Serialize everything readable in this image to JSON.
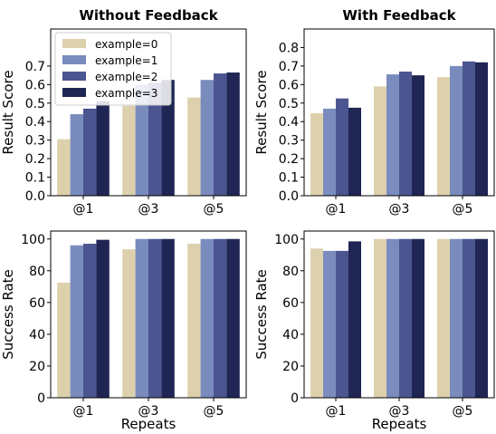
{
  "chart_data": [
    {
      "type": "bar",
      "title": "Without Feedback",
      "xlabel": "",
      "ylabel": "Result Score",
      "categories": [
        "@1",
        "@3",
        "@5"
      ],
      "ylim": [
        0,
        0.9
      ],
      "yticks": [
        "0.0",
        "0.1",
        "0.2",
        "0.3",
        "0.4",
        "0.5",
        "0.6",
        "0.7"
      ],
      "legend": "top-left",
      "series": [
        {
          "name": "example=0",
          "color": "#ddd1ad",
          "values": [
            0.305,
            0.485,
            0.53
          ]
        },
        {
          "name": "example=1",
          "color": "#7a8bbd",
          "values": [
            0.44,
            0.6,
            0.625
          ]
        },
        {
          "name": "example=2",
          "color": "#4b5590",
          "values": [
            0.47,
            0.61,
            0.66
          ]
        },
        {
          "name": "example=3",
          "color": "#1f2654",
          "values": [
            0.51,
            0.625,
            0.665
          ]
        }
      ]
    },
    {
      "type": "bar",
      "title": "With Feedback",
      "xlabel": "",
      "ylabel": "Result Score",
      "categories": [
        "@1",
        "@3",
        "@5"
      ],
      "ylim": [
        0,
        0.9
      ],
      "yticks": [
        "0.0",
        "0.1",
        "0.2",
        "0.3",
        "0.4",
        "0.5",
        "0.6",
        "0.7",
        "0.8"
      ],
      "series": [
        {
          "name": "example=0",
          "color": "#ddd1ad",
          "values": [
            0.445,
            0.59,
            0.64
          ]
        },
        {
          "name": "example=1",
          "color": "#7a8bbd",
          "values": [
            0.47,
            0.655,
            0.7
          ]
        },
        {
          "name": "example=2",
          "color": "#4b5590",
          "values": [
            0.525,
            0.67,
            0.725
          ]
        },
        {
          "name": "example=3",
          "color": "#1f2654",
          "values": [
            0.475,
            0.65,
            0.72
          ]
        }
      ]
    },
    {
      "type": "bar",
      "title": "",
      "xlabel": "Repeats",
      "ylabel": "Success Rate",
      "categories": [
        "@1",
        "@3",
        "@5"
      ],
      "ylim": [
        0,
        105
      ],
      "yticks": [
        "0",
        "20",
        "40",
        "60",
        "80",
        "100"
      ],
      "series": [
        {
          "name": "example=0",
          "color": "#ddd1ad",
          "values": [
            72.5,
            93.5,
            97
          ]
        },
        {
          "name": "example=1",
          "color": "#7a8bbd",
          "values": [
            96,
            100,
            100
          ]
        },
        {
          "name": "example=2",
          "color": "#4b5590",
          "values": [
            97,
            100,
            100
          ]
        },
        {
          "name": "example=3",
          "color": "#1f2654",
          "values": [
            99.5,
            100,
            100
          ]
        }
      ]
    },
    {
      "type": "bar",
      "title": "",
      "xlabel": "Repeats",
      "ylabel": "Success Rate",
      "categories": [
        "@1",
        "@3",
        "@5"
      ],
      "ylim": [
        0,
        105
      ],
      "yticks": [
        "0",
        "20",
        "40",
        "60",
        "80",
        "100"
      ],
      "series": [
        {
          "name": "example=0",
          "color": "#ddd1ad",
          "values": [
            94,
            100,
            100
          ]
        },
        {
          "name": "example=1",
          "color": "#7a8bbd",
          "values": [
            92.5,
            100,
            100
          ]
        },
        {
          "name": "example=2",
          "color": "#4b5590",
          "values": [
            92.5,
            100,
            100
          ]
        },
        {
          "name": "example=3",
          "color": "#1f2654",
          "values": [
            98.5,
            100,
            100
          ]
        }
      ]
    }
  ]
}
